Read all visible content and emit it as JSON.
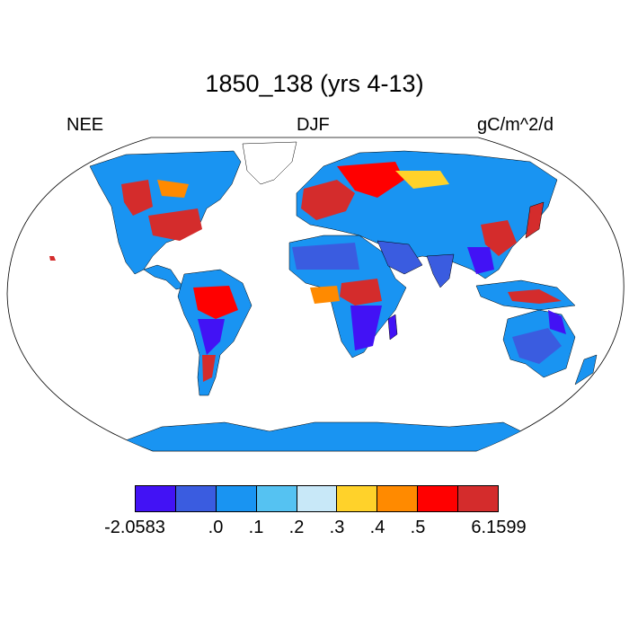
{
  "title": "1850_138 (yrs 4-13)",
  "left_label": "NEE",
  "center_label": "DJF",
  "right_label": "gC/m^2/d",
  "colorbar": {
    "colors": [
      "#4212f5",
      "#3a5ce0",
      "#1994f2",
      "#55c2f2",
      "#c8e8f8",
      "#ffd22a",
      "#ff8a00",
      "#ff0000",
      "#d42c2c"
    ],
    "labels": [
      "-2.0583",
      ".0",
      ".1",
      ".2",
      ".3",
      ".4",
      ".5",
      "6.1599"
    ]
  },
  "map": {
    "projection": "Robinson",
    "ocean_color": "#ffffff",
    "base_land_color": "#1994f2"
  }
}
